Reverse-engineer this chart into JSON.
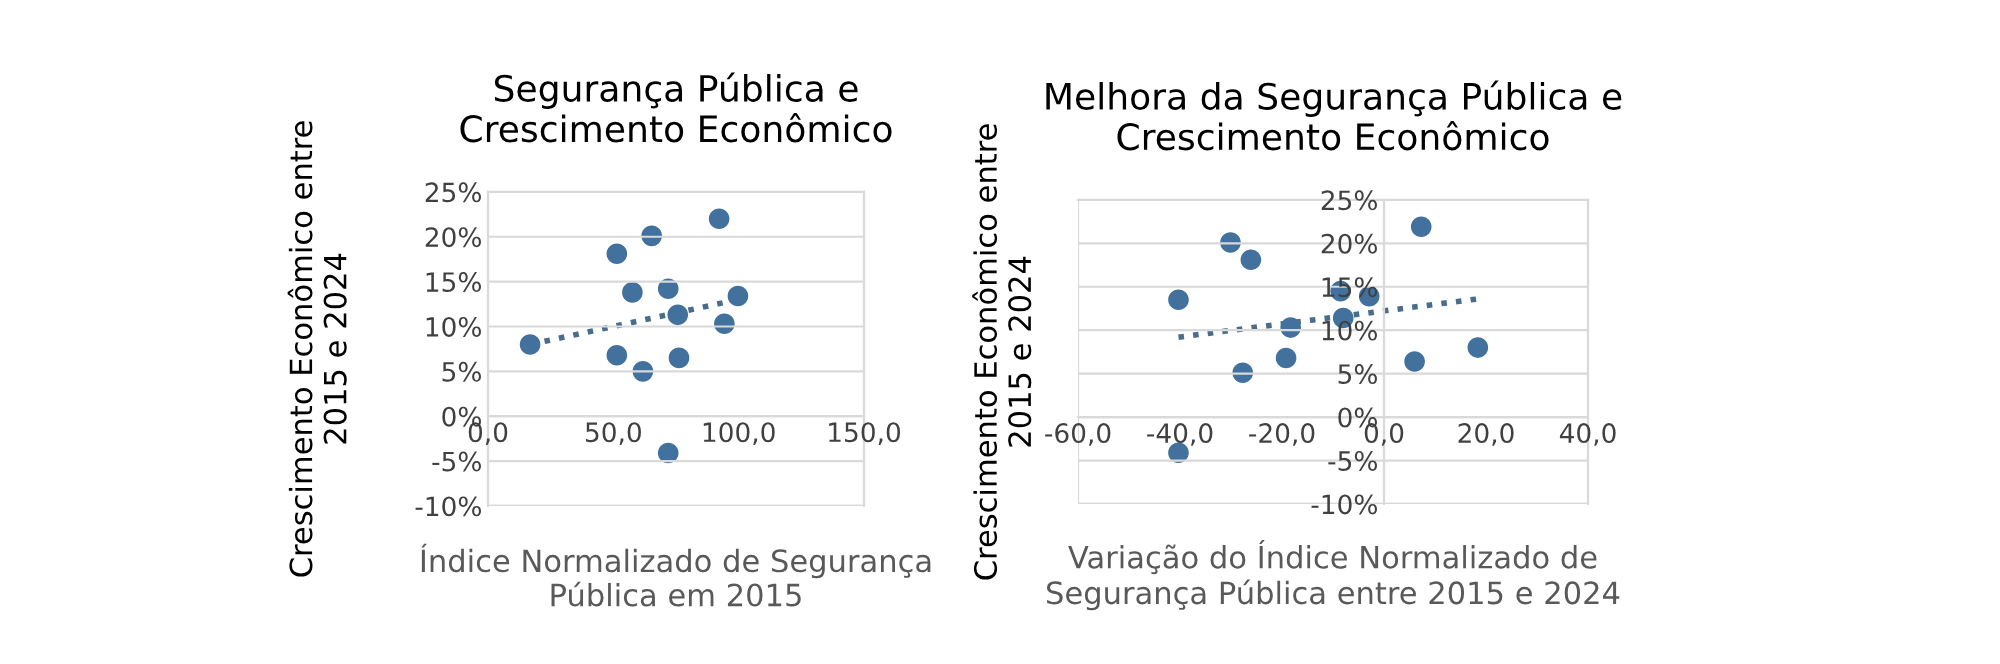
{
  "chart_data": [
    {
      "type": "scatter",
      "title": "Segurança Pública e\nCrescimento Econômico",
      "xlabel": "Índice Normalizado de Segurança\nPública em 2015",
      "ylabel": "Crescimento Econômico entre\n2015 e 2024",
      "x": [
        16.8,
        51.4,
        65.3,
        92.2,
        57.6,
        71.9,
        75.7,
        99.7,
        94.3,
        51.4,
        61.8,
        76.2,
        71.9
      ],
      "series": [
        {
          "color": "#41719c",
          "values": [
            8.0,
            18.1,
            20.1,
            22.0,
            13.8,
            14.2,
            11.3,
            13.4,
            10.3,
            6.8,
            5.0,
            6.5,
            -4.1
          ]
        },
        {
          "type": "line",
          "color": "#4a6d8c",
          "line_style": "dotted",
          "marker": "none",
          "x": [
            16.8,
            99.7
          ],
          "values": [
            8.0,
            13.0
          ]
        }
      ],
      "marker": "circle",
      "grid": "y",
      "xlim": [
        0,
        150
      ],
      "xticks": [
        {
          "value": 0,
          "label": "0,0"
        },
        {
          "value": 50,
          "label": "50,0"
        },
        {
          "value": 100,
          "label": "100,0"
        },
        {
          "value": 150,
          "label": "150,0"
        }
      ],
      "ylim": [
        -10,
        25
      ],
      "yticks": [
        {
          "value": -10,
          "label": "-10%"
        },
        {
          "value": -5,
          "label": "-5%"
        },
        {
          "value": 0,
          "label": "0%"
        },
        {
          "value": 5,
          "label": "5%"
        },
        {
          "value": 10,
          "label": "10%"
        },
        {
          "value": 15,
          "label": "15%"
        },
        {
          "value": 20,
          "label": "20%"
        },
        {
          "value": 25,
          "label": "25%"
        }
      ]
    },
    {
      "type": "scatter",
      "title": "Melhora da Segurança Pública e\nCrescimento Econômico",
      "xlabel": "Variação do Índice Normalizado de\nSegurança Pública entre 2015 e 2024",
      "ylabel": "Crescimento Econômico entre\n2015 e 2024",
      "x": [
        -40.3,
        -30.1,
        -26.1,
        7.3,
        -8.5,
        -2.9,
        -8.0,
        -18.3,
        -19.2,
        -27.7,
        6.0,
        18.4,
        -40.3
      ],
      "series": [
        {
          "color": "#41719c",
          "values": [
            13.5,
            20.1,
            18.1,
            21.9,
            14.5,
            13.9,
            11.4,
            10.3,
            6.8,
            5.1,
            6.4,
            8.0,
            -4.1
          ]
        },
        {
          "type": "line",
          "color": "#4a6d8c",
          "line_style": "dotted",
          "marker": "none",
          "x": [
            -40.3,
            18.4
          ],
          "values": [
            9.2,
            13.6
          ]
        }
      ],
      "marker": "circle",
      "grid": "y",
      "xlim": [
        -60,
        40
      ],
      "xticks": [
        {
          "value": -60,
          "label": "-60,0"
        },
        {
          "value": -40,
          "label": "-40,0"
        },
        {
          "value": -20,
          "label": "-20,0"
        },
        {
          "value": 0,
          "label": "0,0"
        },
        {
          "value": 20,
          "label": "20,0"
        },
        {
          "value": 40,
          "label": "40,0"
        }
      ],
      "ylim": [
        -10,
        25
      ],
      "yticks": [
        {
          "value": -10,
          "label": "-10%"
        },
        {
          "value": -5,
          "label": "-5%"
        },
        {
          "value": 0,
          "label": "0%"
        },
        {
          "value": 5,
          "label": "5%"
        },
        {
          "value": 10,
          "label": "10%"
        },
        {
          "value": 15,
          "label": "15%"
        },
        {
          "value": 20,
          "label": "20%"
        },
        {
          "value": 25,
          "label": "25%"
        }
      ]
    }
  ]
}
